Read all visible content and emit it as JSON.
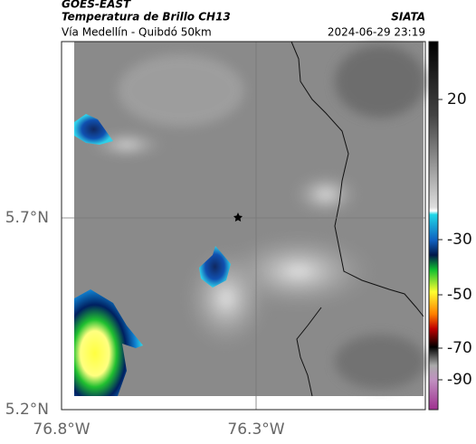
{
  "header": {
    "source": "GOES-EAST",
    "title": "Temperatura de Brillo CH13",
    "org": "SIATA",
    "subtitle": "Vía Medellín - Quibdó 50km",
    "timestamp": "2024-06-29 23:19"
  },
  "map": {
    "lat_labels": [
      "5.7°N",
      "5.2°N"
    ],
    "lon_labels": [
      "76.8°W",
      "76.3°W"
    ]
  },
  "colorbar": {
    "ticks": [
      20,
      -30,
      -50,
      -70,
      -90
    ]
  }
}
